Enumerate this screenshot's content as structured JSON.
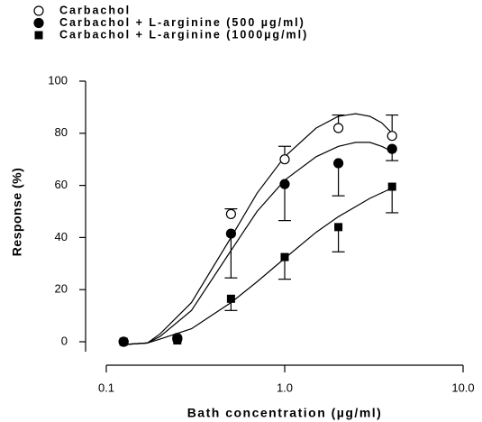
{
  "chart_data": {
    "type": "scatter",
    "xlabel": "Bath concentration (µg/ml)",
    "ylabel": "Response (%)",
    "xscale": "log",
    "xlim": [
      0.1,
      10
    ],
    "xticks": [
      0.1,
      {
        "value": 1,
        "label": "1.0"
      },
      {
        "value": 10,
        "label": "10.0"
      }
    ],
    "ylim": [
      0,
      100
    ],
    "yticks": [
      0,
      20,
      40,
      60,
      80,
      100
    ],
    "legend": "top-left",
    "x": [
      0.125,
      0.25,
      0.5,
      1,
      2,
      4
    ],
    "series": [
      {
        "name": "Carbachol",
        "marker": "open-circle",
        "color": "#000000",
        "error_direction": "up",
        "values": [
          0,
          1.5,
          49,
          70,
          82,
          79
        ],
        "errors": [
          0,
          0,
          2,
          5,
          5,
          8
        ],
        "fit": {
          "x": [
            0.13,
            0.17,
            0.2,
            0.3,
            0.5,
            0.7,
            1,
            1.5,
            2,
            2.5,
            3,
            3.5,
            4
          ],
          "y": [
            -1,
            -0.5,
            3,
            15,
            40,
            57,
            71,
            82,
            86.5,
            87.5,
            86.5,
            84,
            80
          ]
        }
      },
      {
        "name": "Carbachol + L-arginine (500 µg/ml)",
        "marker": "filled-circle",
        "color": "#000000",
        "error_direction": "down",
        "values": [
          0,
          1,
          41.5,
          60.5,
          68.5,
          74
        ],
        "errors": [
          0,
          0,
          17,
          14,
          12.5,
          4.5
        ],
        "fit": {
          "x": [
            0.13,
            0.17,
            0.2,
            0.3,
            0.5,
            0.7,
            1,
            1.5,
            2,
            2.5,
            3,
            3.5,
            4
          ],
          "y": [
            -1,
            -0.5,
            2,
            12,
            35,
            50,
            62,
            71,
            75,
            76.5,
            76.5,
            75,
            73
          ]
        }
      },
      {
        "name": "Carbachol + L-arginine (1000µg/ml)",
        "marker": "square",
        "color": "#000000",
        "error_direction": "down",
        "values": [
          0,
          0.5,
          16.5,
          32.5,
          44,
          59.5
        ],
        "errors": [
          0,
          0,
          4.5,
          8.5,
          9.5,
          10
        ],
        "fit": {
          "x": [
            0.13,
            0.17,
            0.2,
            0.3,
            0.5,
            0.7,
            1,
            1.5,
            2,
            3,
            4
          ],
          "y": [
            -1,
            -0.5,
            1,
            5,
            15,
            23,
            32,
            42,
            48,
            55,
            59
          ]
        }
      }
    ]
  }
}
